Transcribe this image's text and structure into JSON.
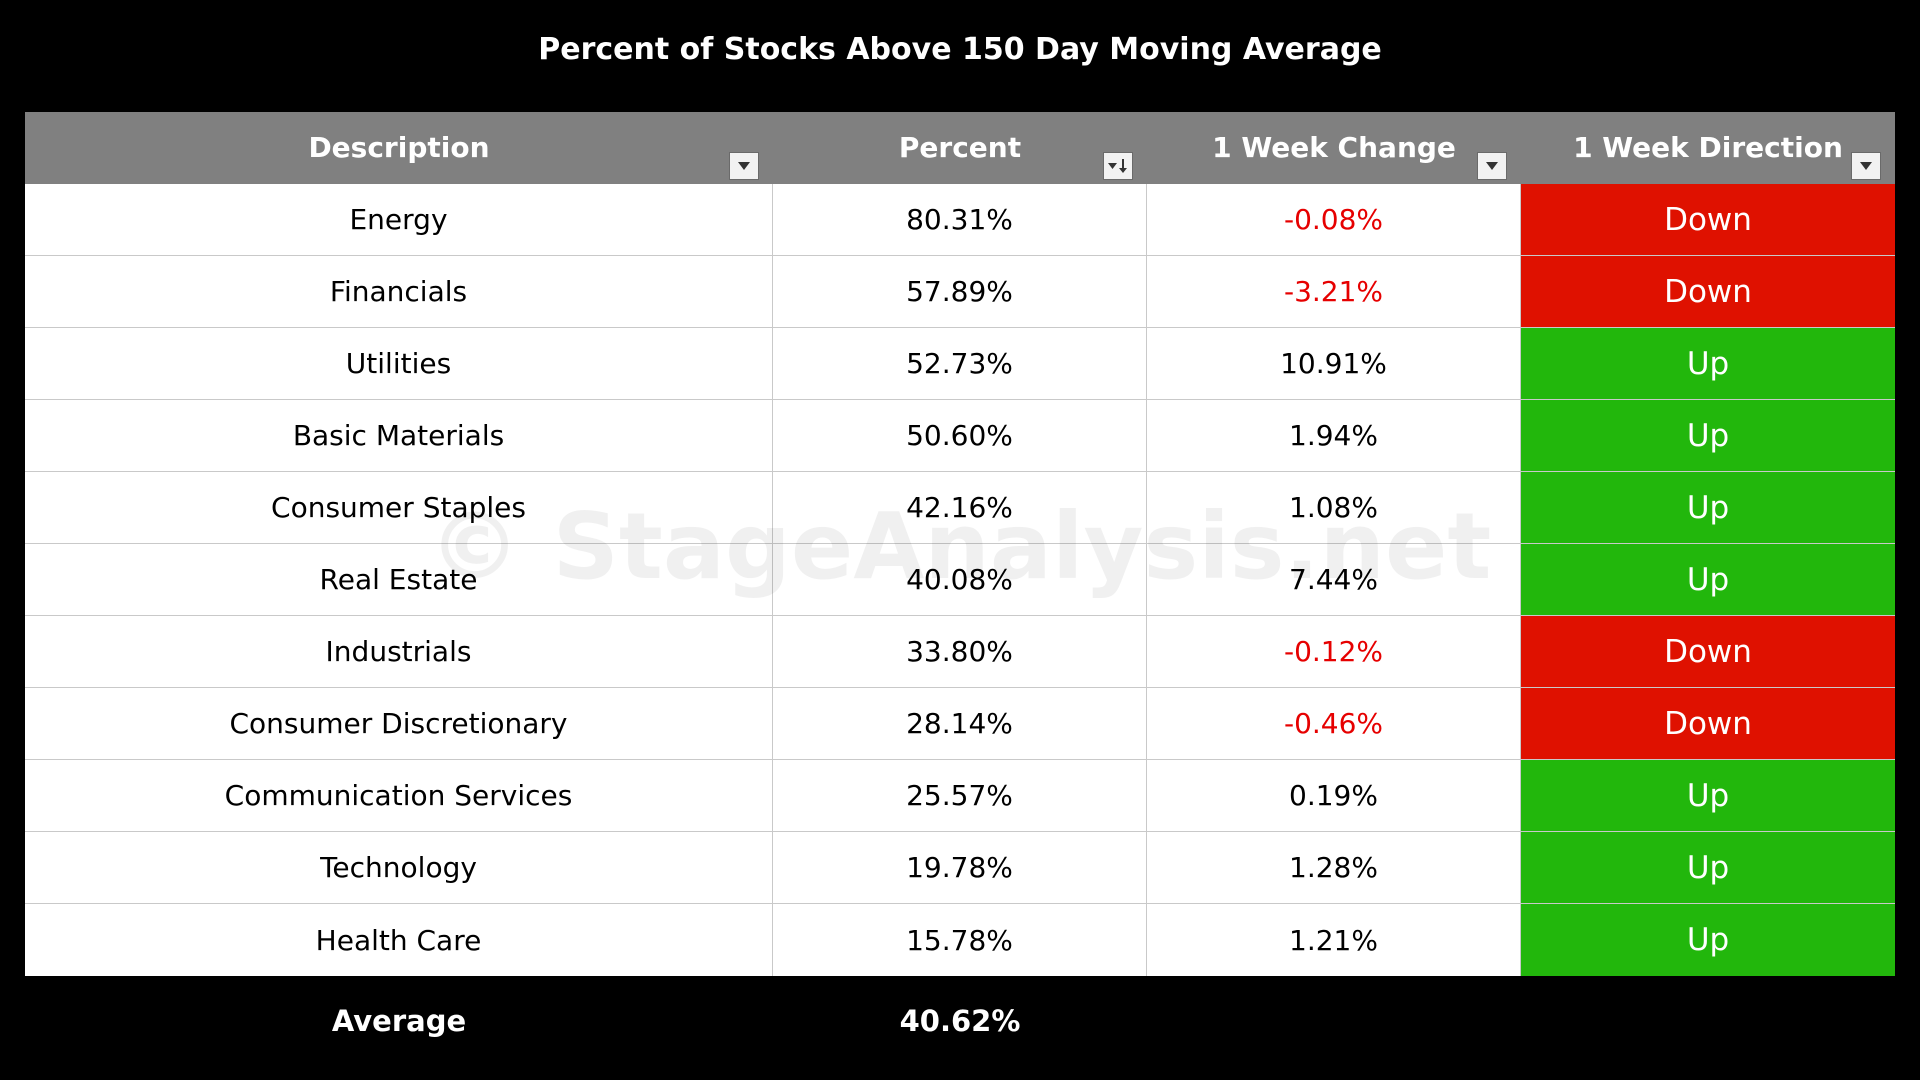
{
  "chart_data": {
    "type": "table",
    "title": "Percent of Stocks Above 150 Day Moving Average",
    "columns": [
      "Description",
      "Percent",
      "1 Week Change",
      "1 Week Direction"
    ],
    "rows": [
      {
        "description": "Energy",
        "percent": "80.31%",
        "change": "-0.08%",
        "direction": "Down"
      },
      {
        "description": "Financials",
        "percent": "57.89%",
        "change": "-3.21%",
        "direction": "Down"
      },
      {
        "description": "Utilities",
        "percent": "52.73%",
        "change": "10.91%",
        "direction": "Up"
      },
      {
        "description": "Basic Materials",
        "percent": "50.60%",
        "change": "1.94%",
        "direction": "Up"
      },
      {
        "description": "Consumer Staples",
        "percent": "42.16%",
        "change": "1.08%",
        "direction": "Up"
      },
      {
        "description": "Real Estate",
        "percent": "40.08%",
        "change": "7.44%",
        "direction": "Up"
      },
      {
        "description": "Industrials",
        "percent": "33.80%",
        "change": "-0.12%",
        "direction": "Down"
      },
      {
        "description": "Consumer Discretionary",
        "percent": "28.14%",
        "change": "-0.46%",
        "direction": "Down"
      },
      {
        "description": "Communication Services",
        "percent": "25.57%",
        "change": "0.19%",
        "direction": "Up"
      },
      {
        "description": "Technology",
        "percent": "19.78%",
        "change": "1.28%",
        "direction": "Up"
      },
      {
        "description": "Health Care",
        "percent": "15.78%",
        "change": "1.21%",
        "direction": "Up"
      }
    ],
    "footer": {
      "label": "Average",
      "percent": "40.62%"
    },
    "watermark": "© StageAnalysis.net"
  },
  "colors": {
    "background": "#000000",
    "header_bg": "#808080",
    "down_bg": "#df1100",
    "up_bg": "#22b70c",
    "negative_text": "#e60000",
    "positive_text": "#000000"
  },
  "icons": {
    "filter": "filter-dropdown-icon",
    "sort": "sort-descending-icon"
  }
}
